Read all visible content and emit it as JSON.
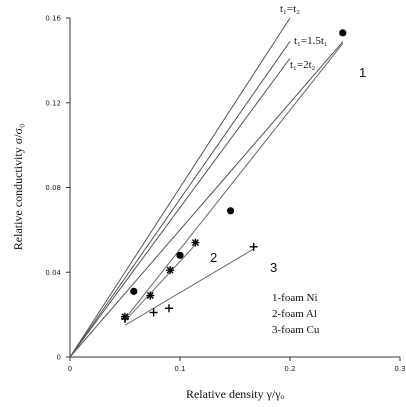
{
  "chart_data": {
    "type": "scatter",
    "xlabel": "Relative density  γ/γₒ",
    "ylabel": "Relative conductivity σ/σ₀",
    "xlim": [
      0,
      0.3
    ],
    "ylim": [
      0,
      0.16
    ],
    "xticks": [
      "0",
      "0.1",
      "0.2",
      "0.3"
    ],
    "yticks": [
      "0",
      "0.04",
      "0.08",
      "0.12",
      "0.16"
    ],
    "xtick_values": [
      0,
      0.1,
      0.2,
      0.3
    ],
    "ytick_values": [
      0,
      0.04,
      0.08,
      0.12,
      0.16
    ],
    "theory_lines": [
      {
        "label": "t₁=t₂",
        "slope": 0.8
      },
      {
        "label": "t₁=1.5t₁",
        "slope": 0.745
      },
      {
        "label": "t₁=2t₂",
        "slope": 0.705
      },
      {
        "label": "",
        "slope": 0.6
      }
    ],
    "series": [
      {
        "name": "1",
        "marker": "circle",
        "points": [
          [
            0.058,
            0.031
          ],
          [
            0.1,
            0.048
          ],
          [
            0.146,
            0.069
          ],
          [
            0.248,
            0.153
          ]
        ],
        "fit": [
          [
            0.05,
            0.018
          ],
          [
            0.248,
            0.148
          ]
        ]
      },
      {
        "name": "2",
        "marker": "star",
        "points": [
          [
            0.05,
            0.019
          ],
          [
            0.073,
            0.029
          ],
          [
            0.091,
            0.041
          ],
          [
            0.114,
            0.054
          ]
        ],
        "fit": [
          [
            0.05,
            0.017
          ],
          [
            0.114,
            0.053
          ]
        ]
      },
      {
        "name": "3",
        "marker": "plus",
        "points": [
          [
            0.05,
            0.018
          ],
          [
            0.076,
            0.021
          ],
          [
            0.09,
            0.023
          ],
          [
            0.167,
            0.052
          ]
        ],
        "fit": [
          [
            0.05,
            0.015
          ],
          [
            0.167,
            0.051
          ]
        ]
      }
    ],
    "legend": {
      "placement": "lower-right",
      "entries": [
        "1-foam Ni",
        "2-foam Al",
        "3-foam Cu"
      ]
    }
  }
}
